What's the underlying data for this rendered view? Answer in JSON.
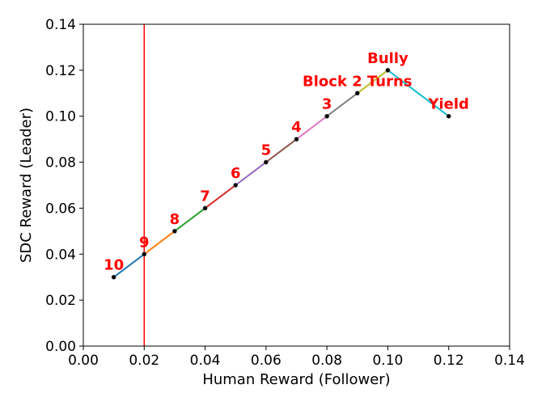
{
  "chart_data": {
    "type": "line",
    "xlabel": "Human Reward (Follower)",
    "ylabel": "SDC Reward (Leader)",
    "xlim": [
      0.0,
      0.14
    ],
    "ylim": [
      0.0,
      0.14
    ],
    "xticks": [
      "0.00",
      "0.02",
      "0.04",
      "0.06",
      "0.08",
      "0.10",
      "0.12",
      "0.14"
    ],
    "yticks": [
      "0.00",
      "0.02",
      "0.04",
      "0.06",
      "0.08",
      "0.10",
      "0.12",
      "0.14"
    ],
    "grid": false,
    "points": [
      {
        "x": 0.01,
        "y": 0.03
      },
      {
        "x": 0.02,
        "y": 0.04
      },
      {
        "x": 0.03,
        "y": 0.05
      },
      {
        "x": 0.04,
        "y": 0.06
      },
      {
        "x": 0.05,
        "y": 0.07
      },
      {
        "x": 0.06,
        "y": 0.08
      },
      {
        "x": 0.07,
        "y": 0.09
      },
      {
        "x": 0.08,
        "y": 0.1
      },
      {
        "x": 0.09,
        "y": 0.11
      },
      {
        "x": 0.1,
        "y": 0.12
      },
      {
        "x": 0.12,
        "y": 0.1
      }
    ],
    "segment_colors": [
      "#1f77b4",
      "#ff7f0e",
      "#2ca02c",
      "#d62728",
      "#9467bd",
      "#8c564b",
      "#e377c2",
      "#7f7f7f",
      "#bcbd22",
      "#17becf"
    ],
    "vline": {
      "x": 0.02,
      "color": "#ff0000"
    },
    "annotations": [
      {
        "text": "10",
        "x": 0.01,
        "y": 0.03
      },
      {
        "text": "9",
        "x": 0.02,
        "y": 0.04
      },
      {
        "text": "8",
        "x": 0.03,
        "y": 0.05
      },
      {
        "text": "7",
        "x": 0.04,
        "y": 0.06
      },
      {
        "text": "6",
        "x": 0.05,
        "y": 0.07
      },
      {
        "text": "5",
        "x": 0.06,
        "y": 0.08
      },
      {
        "text": "4",
        "x": 0.07,
        "y": 0.09
      },
      {
        "text": "3",
        "x": 0.08,
        "y": 0.1
      },
      {
        "text": "Block 2 Turns",
        "x": 0.09,
        "y": 0.11
      },
      {
        "text": "Bully",
        "x": 0.1,
        "y": 0.12
      },
      {
        "text": "Yield",
        "x": 0.12,
        "y": 0.1
      }
    ],
    "annotation_color": "#ff0000"
  }
}
